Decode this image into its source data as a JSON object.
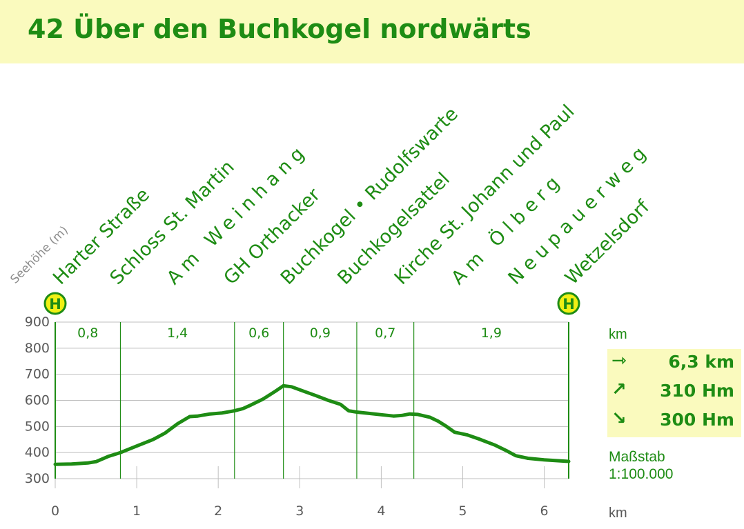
{
  "title": "42  Über den Buchkogel nordwärts",
  "colors": {
    "accent": "#1e8c14",
    "highlight": "#fafabe",
    "stop_badge": "#f0f014"
  },
  "icons": {
    "distance": "arrow-right-bar-icon",
    "ascent": "arrow-up-right-icon",
    "descent": "arrow-down-right-icon"
  },
  "chart_data": {
    "type": "area",
    "ylabel": "Seehöhe (m)",
    "xlabel": "km",
    "xlim": [
      0,
      6.3
    ],
    "ylim": [
      300,
      900
    ],
    "x_ticks": [
      0,
      1,
      2,
      3,
      4,
      5,
      6
    ],
    "y_ticks": [
      300,
      400,
      500,
      600,
      700,
      800,
      900
    ],
    "grid": "horizontal",
    "profile": [
      {
        "x": 0.0,
        "y": 355
      },
      {
        "x": 0.2,
        "y": 356
      },
      {
        "x": 0.4,
        "y": 360
      },
      {
        "x": 0.5,
        "y": 365
      },
      {
        "x": 0.65,
        "y": 385
      },
      {
        "x": 0.8,
        "y": 400
      },
      {
        "x": 1.0,
        "y": 425
      },
      {
        "x": 1.2,
        "y": 450
      },
      {
        "x": 1.35,
        "y": 475
      },
      {
        "x": 1.5,
        "y": 510
      },
      {
        "x": 1.65,
        "y": 538
      },
      {
        "x": 1.75,
        "y": 540
      },
      {
        "x": 1.9,
        "y": 548
      },
      {
        "x": 2.05,
        "y": 552
      },
      {
        "x": 2.2,
        "y": 560
      },
      {
        "x": 2.3,
        "y": 568
      },
      {
        "x": 2.4,
        "y": 582
      },
      {
        "x": 2.55,
        "y": 605
      },
      {
        "x": 2.7,
        "y": 635
      },
      {
        "x": 2.8,
        "y": 656
      },
      {
        "x": 2.9,
        "y": 652
      },
      {
        "x": 3.05,
        "y": 635
      },
      {
        "x": 3.2,
        "y": 618
      },
      {
        "x": 3.35,
        "y": 600
      },
      {
        "x": 3.5,
        "y": 585
      },
      {
        "x": 3.6,
        "y": 560
      },
      {
        "x": 3.7,
        "y": 555
      },
      {
        "x": 3.85,
        "y": 550
      },
      {
        "x": 4.0,
        "y": 545
      },
      {
        "x": 4.15,
        "y": 540
      },
      {
        "x": 4.25,
        "y": 542
      },
      {
        "x": 4.35,
        "y": 548
      },
      {
        "x": 4.45,
        "y": 546
      },
      {
        "x": 4.6,
        "y": 535
      },
      {
        "x": 4.7,
        "y": 520
      },
      {
        "x": 4.8,
        "y": 500
      },
      {
        "x": 4.9,
        "y": 478
      },
      {
        "x": 5.05,
        "y": 468
      },
      {
        "x": 5.2,
        "y": 452
      },
      {
        "x": 5.4,
        "y": 428
      },
      {
        "x": 5.55,
        "y": 405
      },
      {
        "x": 5.65,
        "y": 388
      },
      {
        "x": 5.8,
        "y": 378
      },
      {
        "x": 6.0,
        "y": 372
      },
      {
        "x": 6.2,
        "y": 368
      },
      {
        "x": 6.3,
        "y": 366
      }
    ],
    "segment_boundaries": [
      0,
      0.8,
      2.2,
      2.8,
      3.7,
      4.4,
      6.3
    ],
    "segments": [
      {
        "label": "0,8",
        "from": 0,
        "to": 0.8
      },
      {
        "label": "1,4",
        "from": 0.8,
        "to": 2.2
      },
      {
        "label": "0,6",
        "from": 2.2,
        "to": 2.8
      },
      {
        "label": "0,9",
        "from": 2.8,
        "to": 3.7
      },
      {
        "label": "0,7",
        "from": 3.7,
        "to": 4.4
      },
      {
        "label": "1,9",
        "from": 4.4,
        "to": 6.3
      }
    ],
    "stops": [
      {
        "name": "Harter Straße",
        "spaced": false,
        "bus": true
      },
      {
        "name": "Schloss St. Martin",
        "spaced": false,
        "bus": false
      },
      {
        "name": "Am Weinhang",
        "spaced": true,
        "bus": false
      },
      {
        "name": "GH Orthacker",
        "spaced": false,
        "bus": false
      },
      {
        "name": "Buchkogel • Rudolfswarte",
        "spaced": false,
        "bus": false
      },
      {
        "name": "Buchkogelsattel",
        "spaced": false,
        "bus": false
      },
      {
        "name": "Kirche St. Johann und Paul",
        "spaced": false,
        "bus": false
      },
      {
        "name": "Am Ölberg",
        "spaced": true,
        "bus": false
      },
      {
        "name": "Neupauerweg",
        "spaced": true,
        "bus": false
      },
      {
        "name": "Wetzelsdorf",
        "spaced": false,
        "bus": true
      }
    ],
    "bus_symbol": "H"
  },
  "stats": {
    "unit_label": "km",
    "distance": "6,3 km",
    "ascent": "310 Hm",
    "descent": "300 Hm"
  },
  "scale": {
    "label": "Maßstab",
    "value": "1:100.000"
  },
  "x_unit": "km"
}
